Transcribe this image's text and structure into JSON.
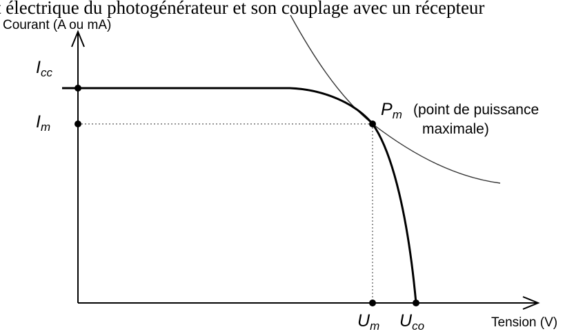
{
  "header": {
    "title_fragment": "t électrique du photogénérateur et son couplage avec un récepteur"
  },
  "axes": {
    "y_label": "Courant (A ou mA)",
    "x_label": "Tension (V)"
  },
  "points": {
    "icc": {
      "base": "I",
      "sub": "cc"
    },
    "im": {
      "base": "I",
      "sub": "m"
    },
    "um": {
      "base": "U",
      "sub": "m"
    },
    "uco": {
      "base": "U",
      "sub": "co"
    },
    "pm": {
      "base": "P",
      "sub": "m"
    }
  },
  "annotation": {
    "line1": "(point de puissance",
    "line2": "maximale)"
  },
  "colors": {
    "curve": "#000000",
    "guide": "#555555"
  }
}
